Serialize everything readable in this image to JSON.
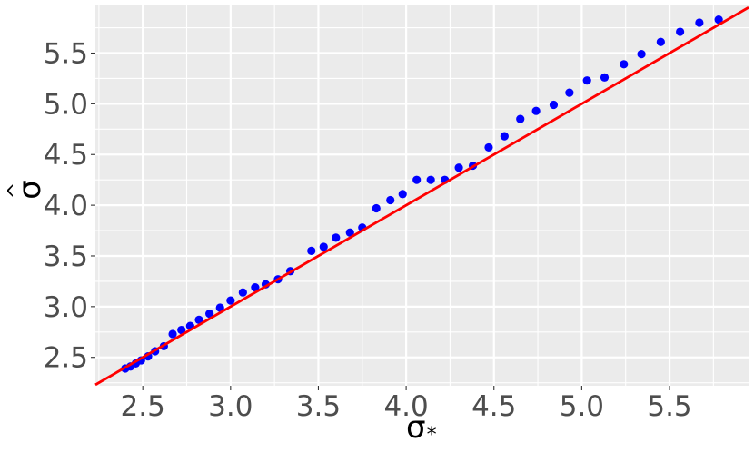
{
  "chart_data": {
    "type": "scatter",
    "title": "",
    "xlabel": "σ",
    "xlabel_subscript": "*",
    "ylabel": "σ",
    "ylabel_accent": "^",
    "xlim": [
      2.23,
      5.95
    ],
    "ylim": [
      2.22,
      5.97
    ],
    "xticks": [
      2.5,
      3.0,
      3.5,
      4.0,
      4.5,
      5.0,
      5.5
    ],
    "xtick_labels": [
      "2.5",
      "3.0",
      "3.5",
      "4.0",
      "4.5",
      "5.0",
      "5.5"
    ],
    "yticks": [
      2.5,
      3.0,
      3.5,
      4.0,
      4.5,
      5.0,
      5.5
    ],
    "ytick_labels": [
      "2.5",
      "3.0",
      "3.5",
      "4.0",
      "4.5",
      "5.0",
      "5.5"
    ],
    "grid": true,
    "legend": "none",
    "colors": {
      "panel": "#ebebeb",
      "grid": "#ffffff",
      "points": "#0000ff",
      "line": "#ff0000"
    },
    "reference_line": {
      "slope": 1,
      "intercept": 0
    },
    "x": [
      2.4,
      2.43,
      2.46,
      2.49,
      2.53,
      2.57,
      2.62,
      2.67,
      2.72,
      2.77,
      2.82,
      2.88,
      2.94,
      3.0,
      3.07,
      3.14,
      3.2,
      3.27,
      3.34,
      3.46,
      3.53,
      3.6,
      3.68,
      3.75,
      3.83,
      3.91,
      3.98,
      4.06,
      4.14,
      4.22,
      4.3,
      4.38,
      4.47,
      4.56,
      4.65,
      4.74,
      4.84,
      4.93,
      5.03,
      5.13,
      5.24,
      5.34,
      5.45,
      5.56,
      5.67,
      5.78
    ],
    "y": [
      2.39,
      2.41,
      2.44,
      2.47,
      2.51,
      2.56,
      2.61,
      2.73,
      2.77,
      2.81,
      2.87,
      2.93,
      2.99,
      3.06,
      3.14,
      3.19,
      3.22,
      3.27,
      3.35,
      3.55,
      3.59,
      3.68,
      3.73,
      3.78,
      3.97,
      4.05,
      4.11,
      4.25,
      4.25,
      4.25,
      4.37,
      4.39,
      4.57,
      4.68,
      4.85,
      4.93,
      4.99,
      5.11,
      5.23,
      5.26,
      5.39,
      5.49,
      5.61,
      5.71,
      5.8,
      5.83
    ]
  }
}
